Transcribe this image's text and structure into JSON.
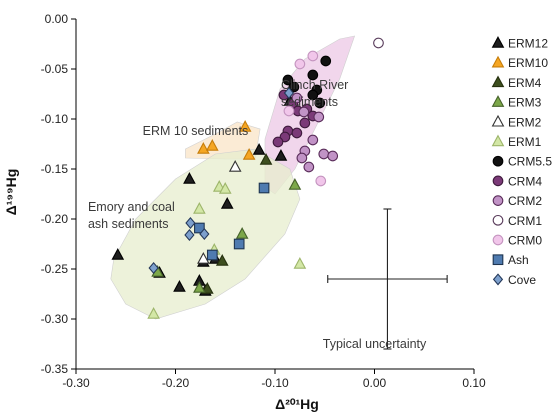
{
  "chart_data": {
    "type": "scatter",
    "xlabel": "Δ²⁰¹Hg",
    "ylabel": "Δ¹⁹⁹Hg",
    "xlim": [
      -0.3,
      0.1
    ],
    "ylim": [
      -0.35,
      0.0
    ],
    "x_ticks": [
      "-0.30",
      "-0.20",
      "-0.10",
      "0.00",
      "0.10"
    ],
    "y_ticks": [
      "0.00",
      "-0.05",
      "-0.10",
      "-0.15",
      "-0.20",
      "-0.25",
      "-0.30",
      "-0.35"
    ],
    "grid": false,
    "legend_position": "right",
    "annotations": [
      {
        "id": "clinch-river",
        "lines": [
          "Clinch River",
          "sediments"
        ],
        "x": -0.094,
        "y": -0.07
      },
      {
        "id": "erm10-sediments",
        "lines": [
          "ERM 10 sediments"
        ],
        "x": -0.233,
        "y": -0.116
      },
      {
        "id": "emory-ash",
        "lines": [
          "Emory and coal",
          "ash sediments"
        ],
        "x": -0.288,
        "y": -0.192
      },
      {
        "id": "typical-uncertainty",
        "lines": [
          "Typical uncertainty"
        ],
        "x": -0.052,
        "y": -0.329
      }
    ],
    "uncertainty": {
      "x": 0.013,
      "y": -0.26,
      "xerr": 0.06,
      "yerr": 0.07
    },
    "regions": [
      {
        "name": "Clinch River sediments",
        "color": "#ecc8e6",
        "polygon": [
          [
            -0.035,
            -0.02
          ],
          [
            -0.02,
            -0.017
          ],
          [
            -0.035,
            -0.06
          ],
          [
            -0.06,
            -0.11
          ],
          [
            -0.08,
            -0.15
          ],
          [
            -0.1,
            -0.175
          ],
          [
            -0.11,
            -0.168
          ],
          [
            -0.11,
            -0.12
          ],
          [
            -0.095,
            -0.07
          ],
          [
            -0.07,
            -0.04
          ]
        ]
      },
      {
        "name": "ERM 10 sediments",
        "color": "#f9e4c7",
        "polygon": [
          [
            -0.19,
            -0.13
          ],
          [
            -0.16,
            -0.115
          ],
          [
            -0.138,
            -0.103
          ],
          [
            -0.115,
            -0.11
          ],
          [
            -0.12,
            -0.14
          ],
          [
            -0.15,
            -0.14
          ],
          [
            -0.19,
            -0.139
          ]
        ]
      },
      {
        "name": "Emory and coal ash sediments",
        "color": "#e7edcd",
        "polygon": [
          [
            -0.262,
            -0.24
          ],
          [
            -0.24,
            -0.2
          ],
          [
            -0.2,
            -0.16
          ],
          [
            -0.16,
            -0.135
          ],
          [
            -0.12,
            -0.13
          ],
          [
            -0.085,
            -0.15
          ],
          [
            -0.075,
            -0.18
          ],
          [
            -0.09,
            -0.215
          ],
          [
            -0.13,
            -0.26
          ],
          [
            -0.17,
            -0.285
          ],
          [
            -0.22,
            -0.3
          ],
          [
            -0.25,
            -0.285
          ],
          [
            -0.265,
            -0.26
          ]
        ]
      }
    ],
    "series": [
      {
        "name": "ERM12",
        "marker": "triangle",
        "fill": "#1e1e1e",
        "stroke": "#000000",
        "points": [
          [
            -0.258,
            -0.236
          ],
          [
            -0.216,
            -0.254
          ],
          [
            -0.196,
            -0.268
          ],
          [
            -0.186,
            -0.16
          ],
          [
            -0.176,
            -0.262
          ],
          [
            -0.17,
            -0.272
          ],
          [
            -0.148,
            -0.185
          ],
          [
            -0.116,
            -0.131
          ],
          [
            -0.094,
            -0.137
          ],
          [
            -0.085,
            -0.082
          ],
          [
            -0.172,
            -0.243
          ],
          [
            -0.16,
            -0.24
          ]
        ]
      },
      {
        "name": "ERM10",
        "marker": "triangle",
        "fill": "#f5a623",
        "stroke": "#c67d0a",
        "points": [
          [
            -0.172,
            -0.13
          ],
          [
            -0.163,
            -0.127
          ],
          [
            -0.13,
            -0.108
          ],
          [
            -0.126,
            -0.136
          ]
        ]
      },
      {
        "name": "ERM4",
        "marker": "triangle",
        "fill": "#3e4f1f",
        "stroke": "#26310f",
        "points": [
          [
            -0.168,
            -0.27
          ],
          [
            -0.153,
            -0.242
          ],
          [
            -0.109,
            -0.141
          ]
        ]
      },
      {
        "name": "ERM3",
        "marker": "triangle",
        "fill": "#7da84a",
        "stroke": "#46622a",
        "points": [
          [
            -0.218,
            -0.253
          ],
          [
            -0.176,
            -0.269
          ],
          [
            -0.133,
            -0.215
          ],
          [
            -0.08,
            -0.166
          ]
        ]
      },
      {
        "name": "ERM2",
        "marker": "triangle",
        "fill": "#ffffff",
        "stroke": "#333333",
        "points": [
          [
            -0.172,
            -0.24
          ],
          [
            -0.14,
            -0.148
          ]
        ]
      },
      {
        "name": "ERM1",
        "marker": "triangle",
        "fill": "#d3e7a6",
        "stroke": "#9db56a",
        "points": [
          [
            -0.222,
            -0.295
          ],
          [
            -0.176,
            -0.19
          ],
          [
            -0.156,
            -0.168
          ],
          [
            -0.15,
            -0.17
          ],
          [
            -0.161,
            -0.231
          ],
          [
            -0.075,
            -0.245
          ]
        ]
      },
      {
        "name": "CRM5.5",
        "marker": "circle",
        "fill": "#111111",
        "stroke": "#000000",
        "points": [
          [
            -0.049,
            -0.042
          ],
          [
            -0.062,
            -0.056
          ],
          [
            -0.087,
            -0.061
          ],
          [
            -0.081,
            -0.068
          ],
          [
            -0.058,
            -0.071
          ],
          [
            -0.062,
            -0.076
          ],
          [
            -0.055,
            -0.084
          ]
        ]
      },
      {
        "name": "CRM4",
        "marker": "circle",
        "fill": "#7b3a78",
        "stroke": "#3e1a3c",
        "points": [
          [
            -0.091,
            -0.076
          ],
          [
            -0.082,
            -0.085
          ],
          [
            -0.077,
            -0.092
          ],
          [
            -0.068,
            -0.09
          ],
          [
            -0.062,
            -0.097
          ],
          [
            -0.07,
            -0.104
          ],
          [
            -0.087,
            -0.112
          ],
          [
            -0.09,
            -0.118
          ],
          [
            -0.097,
            -0.123
          ],
          [
            -0.078,
            -0.114
          ]
        ]
      },
      {
        "name": "CRM2",
        "marker": "circle",
        "fill": "#c193c6",
        "stroke": "#5a2d5a",
        "points": [
          [
            -0.078,
            -0.079
          ],
          [
            -0.071,
            -0.093
          ],
          [
            -0.056,
            -0.098
          ],
          [
            -0.062,
            -0.121
          ],
          [
            -0.07,
            -0.132
          ],
          [
            -0.051,
            -0.135
          ],
          [
            -0.042,
            -0.137
          ],
          [
            -0.073,
            -0.139
          ],
          [
            -0.066,
            -0.148
          ]
        ]
      },
      {
        "name": "CRM1",
        "marker": "circle",
        "fill": "#ffffff",
        "stroke": "#5a3d5c",
        "points": [
          [
            0.004,
            -0.024
          ]
        ]
      },
      {
        "name": "CRM0",
        "marker": "circle",
        "fill": "#f1c6ea",
        "stroke": "#c494bf",
        "points": [
          [
            -0.062,
            -0.037
          ],
          [
            -0.075,
            -0.045
          ],
          [
            -0.086,
            -0.092
          ],
          [
            -0.054,
            -0.162
          ]
        ]
      },
      {
        "name": "Ash",
        "marker": "square",
        "fill": "#4f7bb0",
        "stroke": "#1f3550",
        "points": [
          [
            -0.176,
            -0.209
          ],
          [
            -0.163,
            -0.236
          ],
          [
            -0.136,
            -0.225
          ],
          [
            -0.111,
            -0.169
          ]
        ]
      },
      {
        "name": "Cove",
        "marker": "diamond",
        "fill": "#7da0cd",
        "stroke": "#25395a",
        "points": [
          [
            -0.222,
            -0.249
          ],
          [
            -0.185,
            -0.204
          ],
          [
            -0.186,
            -0.216
          ],
          [
            -0.171,
            -0.215
          ],
          [
            -0.086,
            -0.074
          ]
        ]
      }
    ]
  }
}
